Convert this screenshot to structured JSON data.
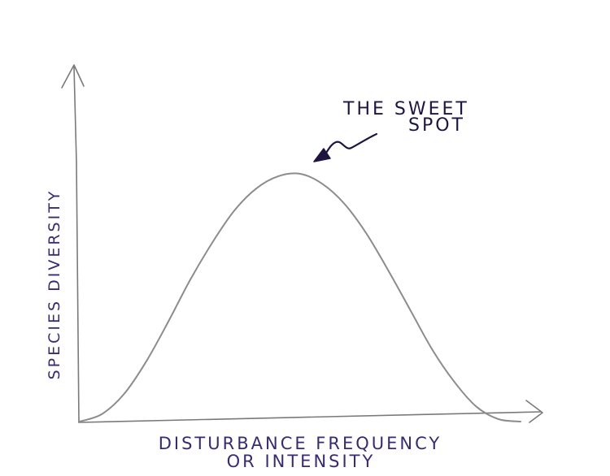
{
  "chart_data": {
    "type": "line",
    "xlabel_line1": "DISTURBANCE FREQUENCY",
    "xlabel_line2": "OR INTENSITY",
    "ylabel": "SPECIES DIVERSITY",
    "annotation_line1": "THE SWEET",
    "annotation_line2": "SPOT",
    "series": [
      {
        "x": [
          0,
          0.05,
          0.1,
          0.15,
          0.2,
          0.25,
          0.3,
          0.35,
          0.4,
          0.45,
          0.5,
          0.55,
          0.6,
          0.65,
          0.7,
          0.75,
          0.8,
          0.85,
          0.9,
          0.95,
          1.0
        ],
        "y": [
          0.0,
          0.03,
          0.11,
          0.24,
          0.4,
          0.57,
          0.72,
          0.85,
          0.94,
          0.99,
          1.0,
          0.96,
          0.88,
          0.76,
          0.61,
          0.45,
          0.29,
          0.16,
          0.06,
          0.01,
          0.0
        ]
      }
    ],
    "xlim": [
      0,
      1
    ],
    "ylim": [
      0,
      1
    ],
    "grid": false,
    "ticks": false,
    "colors": {
      "axis": "#7a7a7a",
      "curve": "#8c8c8c",
      "label": "#3a2a6e",
      "annotation": "#1f1440"
    }
  }
}
